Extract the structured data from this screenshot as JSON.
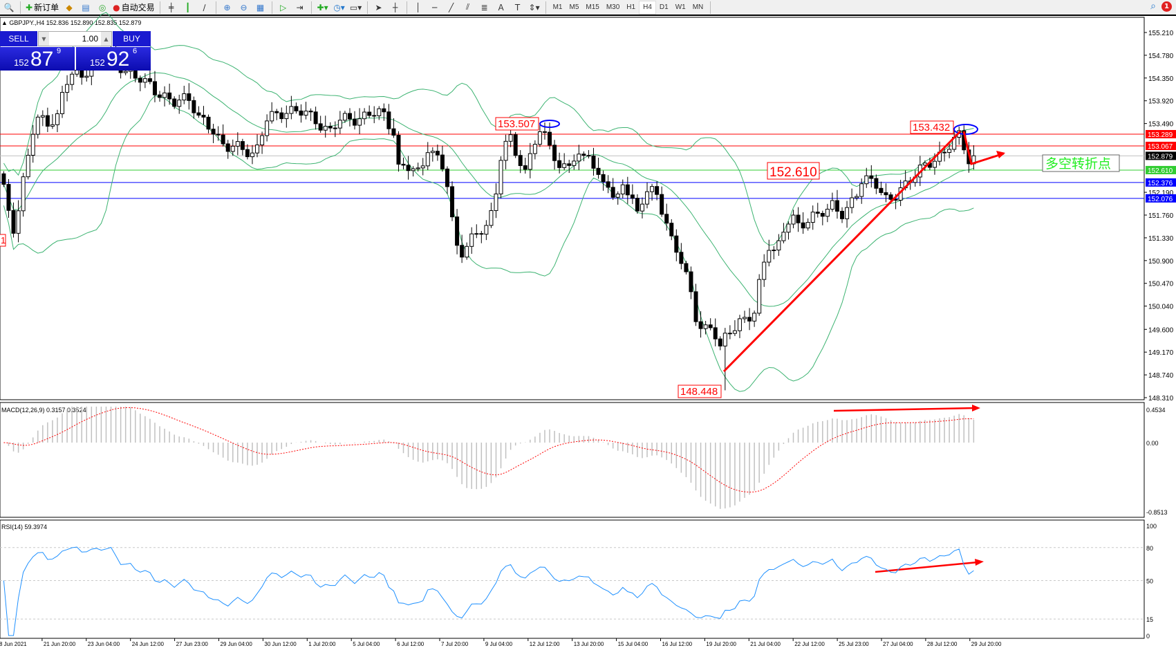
{
  "toolbar": {
    "new_order": "新订单",
    "auto_trading": "自动交易",
    "timeframes": [
      "M1",
      "M5",
      "M15",
      "M30",
      "H1",
      "H4",
      "D1",
      "W1",
      "MN"
    ],
    "active_timeframe": "H4",
    "notification_count": "1"
  },
  "header": {
    "symbol_line": "GBPJPY.,H4  152.836 152.890 152.835 152.879"
  },
  "trade_panel": {
    "sell_label": "SELL",
    "buy_label": "BUY",
    "lots": "1.00",
    "sell_price": {
      "big": "152",
      "main": "87",
      "sup": "9"
    },
    "buy_price": {
      "big": "152",
      "main": "92",
      "sup": "6"
    }
  },
  "price_axis": {
    "labels": [
      "155.210",
      "154.780",
      "154.350",
      "153.920",
      "153.490",
      "152.190",
      "151.760",
      "151.330",
      "150.900",
      "150.470",
      "150.040",
      "149.600",
      "149.170",
      "148.740",
      "148.310"
    ]
  },
  "levels": [
    {
      "price": "153.289",
      "color": "#ff0000",
      "text_color": "#ffffff"
    },
    {
      "price": "153.067",
      "color": "#ff0000",
      "text_color": "#ffffff"
    },
    {
      "price": "152.879",
      "color": "#000000",
      "line_color": "#c0c0c0",
      "text_color": "#ffffff"
    },
    {
      "price": "152.610",
      "color": "#32cd32",
      "text_color": "#ffffff"
    },
    {
      "price": "152.376",
      "color": "#0000ff",
      "text_color": "#ffffff"
    },
    {
      "price": "152.076",
      "color": "#0000ff",
      "text_color": "#ffffff"
    }
  ],
  "annotations": {
    "high_1": "153.507",
    "high_2": "153.432",
    "mid": "152.610",
    "low": "148.448",
    "left_cut": "1",
    "turning_point": "多空转折点"
  },
  "macd": {
    "label": "MACD(12,26,9) 0.3157 0.3524",
    "axis": [
      "0.4534",
      "0.00",
      "-0.8513"
    ]
  },
  "rsi": {
    "label": "RSI(14) 59.3974",
    "axis": [
      "100",
      "80",
      "50",
      "15",
      "0"
    ]
  },
  "time_axis": [
    "8 Jun 2021",
    "21 Jun 20:00",
    "23 Jun 04:00",
    "24 Jun 12:00",
    "27 Jun 23:00",
    "29 Jun 04:00",
    "30 Jun 12:00",
    "1 Jul 20:00",
    "5 Jul 04:00",
    "6 Jul 12:00",
    "7 Jul 20:00",
    "9 Jul 04:00",
    "12 Jul 12:00",
    "13 Jul 20:00",
    "15 Jul 04:00",
    "16 Jul 12:00",
    "19 Jul 20:00",
    "21 Jul 04:00",
    "22 Jul 12:00",
    "25 Jul 23:00",
    "27 Jul 04:00",
    "28 Jul 12:00",
    "29 Jul 20:00"
  ],
  "colors": {
    "bands": "#3cb371",
    "signal": "#ff0000",
    "histogram": "#c0c0c0",
    "rsi": "#1e90ff",
    "annotation": "#ff0000",
    "ellipse": "#0000ff"
  },
  "chart_data": {
    "type": "candlestick",
    "symbol": "GBPJPY.",
    "timeframe": "H4",
    "ylim": [
      148.31,
      155.21
    ],
    "close_path": [
      152.22,
      151.44,
      152.78,
      153.35,
      153.63,
      153.49,
      154.2,
      154.42,
      154.49,
      154.63,
      154.84,
      154.49,
      154.34,
      154.27,
      153.99,
      153.85,
      154.06,
      153.56,
      153.35,
      153.07,
      153.0,
      152.93,
      153.56,
      153.63,
      153.78,
      153.71,
      153.56,
      153.35,
      153.56,
      153.59,
      153.63,
      153.71,
      153.35,
      152.64,
      152.64,
      152.57,
      153.07,
      152.64,
      152.15,
      151.29,
      151.08,
      151.22,
      151.44,
      151.58,
      152.07,
      152.78,
      153.21,
      152.85,
      152.57,
      153.14,
      153.28,
      153.07,
      152.64,
      152.78,
      152.78,
      153.0,
      152.5,
      152.36,
      151.86,
      152.43,
      152.15,
      151.79,
      152.15,
      152.22,
      151.79,
      151.29,
      150.8,
      150.37,
      149.73,
      149.59,
      149.59,
      149.24,
      149.59,
      149.73,
      149.73,
      149.87,
      150.73,
      151.22,
      151.01,
      151.44,
      151.79,
      151.58,
      151.65,
      151.72,
      151.86,
      152.0,
      151.72,
      152.07,
      152.5,
      152.43,
      152.0,
      152.07,
      152.29,
      152.43,
      152.64,
      152.85,
      152.93,
      153.14,
      153.28,
      152.85,
      152.88
    ],
    "marked_high": 153.507,
    "marked_high_2": 153.432,
    "marked_low": 148.448,
    "indicators": [
      "Bollinger Bands",
      "MACD(12,26,9)",
      "RSI(14)"
    ]
  }
}
